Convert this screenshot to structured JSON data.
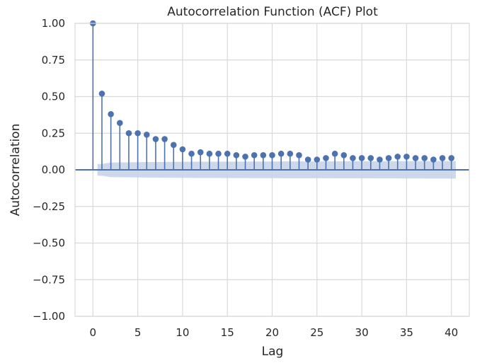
{
  "chart_data": {
    "type": "stem",
    "title": "Autocorrelation Function (ACF) Plot",
    "xlabel": "Lag",
    "ylabel": "Autocorrelation",
    "xlim": [
      -2,
      42
    ],
    "ylim": [
      -1.0,
      1.0
    ],
    "xticks": [
      0,
      5,
      10,
      15,
      20,
      25,
      30,
      35,
      40
    ],
    "yticks": [
      -1.0,
      -0.75,
      -0.5,
      -0.25,
      0.0,
      0.25,
      0.5,
      0.75,
      1.0
    ],
    "ytick_labels": [
      "−1.00",
      "−0.75",
      "−0.50",
      "−0.25",
      "0.00",
      "0.25",
      "0.50",
      "0.75",
      "1.00"
    ],
    "xtick_labels": [
      "0",
      "5",
      "10",
      "15",
      "20",
      "25",
      "30",
      "35",
      "40"
    ],
    "grid": true,
    "colors": {
      "stem": "#4c72b0",
      "confidence_band": "#c5d1e8",
      "grid": "#d9d9d9",
      "background": "#ffffff"
    },
    "lags": [
      0,
      1,
      2,
      3,
      4,
      5,
      6,
      7,
      8,
      9,
      10,
      11,
      12,
      13,
      14,
      15,
      16,
      17,
      18,
      19,
      20,
      21,
      22,
      23,
      24,
      25,
      26,
      27,
      28,
      29,
      30,
      31,
      32,
      33,
      34,
      35,
      36,
      37,
      38,
      39,
      40
    ],
    "values": [
      1.0,
      0.52,
      0.38,
      0.32,
      0.25,
      0.25,
      0.24,
      0.21,
      0.21,
      0.17,
      0.14,
      0.11,
      0.12,
      0.11,
      0.11,
      0.11,
      0.1,
      0.09,
      0.1,
      0.1,
      0.1,
      0.11,
      0.11,
      0.1,
      0.07,
      0.07,
      0.08,
      0.11,
      0.1,
      0.08,
      0.08,
      0.08,
      0.07,
      0.08,
      0.09,
      0.09,
      0.08,
      0.08,
      0.07,
      0.08,
      0.08
    ],
    "confidence_interval": {
      "lags": [
        1,
        2,
        5,
        10,
        20,
        30,
        40
      ],
      "upper": [
        0.04,
        0.05,
        0.052,
        0.055,
        0.057,
        0.058,
        0.06
      ],
      "lower": [
        -0.04,
        -0.05,
        -0.052,
        -0.055,
        -0.057,
        -0.058,
        -0.06
      ]
    }
  }
}
